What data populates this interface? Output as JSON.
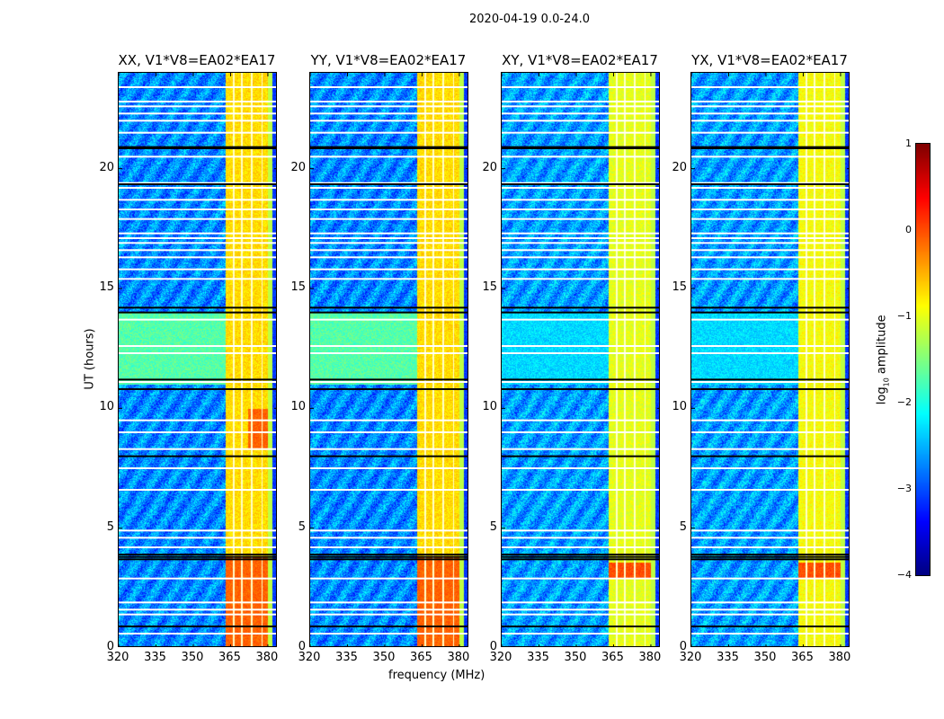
{
  "chart_data": {
    "type": "heatmap",
    "title": "2020-04-19 0.0-24.0",
    "xlabel": "frequency (MHz)",
    "ylabel": "UT (hours)",
    "xlim": [
      320,
      384
    ],
    "ylim": [
      0,
      24
    ],
    "xticks": [
      "320",
      "335",
      "350",
      "365",
      "380"
    ],
    "xtick_values": [
      320,
      335,
      350,
      365,
      380
    ],
    "yticks": [
      "0",
      "5",
      "10",
      "15",
      "20"
    ],
    "ytick_values": [
      0,
      5,
      10,
      15,
      20
    ],
    "colorbar": {
      "label": "log10 amplitude",
      "label_main": "log",
      "label_sub": "10",
      "label_rest": " amplitude",
      "range": [
        -4,
        1
      ],
      "ticks": [
        "1",
        "0",
        "−1",
        "−2",
        "−3",
        "−4"
      ],
      "tick_values": [
        1,
        0,
        -1,
        -2,
        -3,
        -4
      ],
      "colormap": "jet"
    },
    "panels": [
      {
        "title": "XX, V1*V8=EA02*EA17",
        "background": -2.7,
        "band_level": -0.7,
        "band_red_level": -0.1,
        "green_period_level": -1.7
      },
      {
        "title": "YY, V1*V8=EA02*EA17",
        "background": -2.7,
        "band_level": -0.7,
        "band_red_level": -0.1,
        "green_period_level": -1.7
      },
      {
        "title": "XY, V1*V8=EA02*EA17",
        "background": -2.6,
        "band_level": -1.0,
        "band_red_level": 0.0,
        "green_period_level": -2.3
      },
      {
        "title": "YX, V1*V8=EA02*EA17",
        "background": -2.6,
        "band_level": -0.9,
        "band_red_level": 0.0,
        "green_period_level": -2.3
      }
    ],
    "bright_band_MHz": [
      363,
      380
    ],
    "band_gaps_MHz": [
      366,
      369.5,
      373.5,
      377.5
    ],
    "flagged_rows_UT": [
      23.4,
      22.8,
      22.6,
      22.3,
      22.0,
      21.5,
      20.5,
      19.4,
      19.2,
      18.7,
      18.3,
      17.9,
      17.3,
      17.1,
      16.9,
      16.6,
      16.3,
      15.8,
      15.4,
      13.7,
      12.6,
      12.3,
      11.1,
      9.5,
      9.0,
      8.3,
      7.5,
      6.6,
      4.9,
      4.6,
      4.2,
      2.9,
      1.9,
      1.6,
      1.4,
      0.6
    ],
    "black_rows_UT": [
      20.9,
      20.85,
      19.35,
      14.2,
      14.0,
      11.2,
      10.8,
      8.0,
      3.9,
      3.8,
      3.7,
      0.9
    ]
  }
}
